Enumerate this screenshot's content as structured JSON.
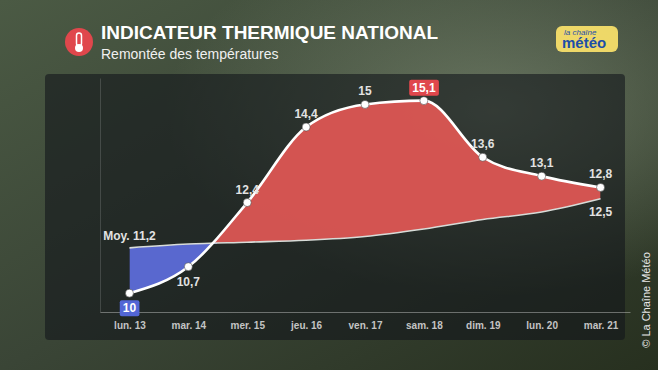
{
  "chart_data": {
    "type": "line",
    "title": "INDICATEUR THERMIQUE NATIONAL",
    "subtitle": "Remontée des températures",
    "logo": {
      "top": "la chaîne",
      "bottom": "météo"
    },
    "source": "© La Chaîne Météo",
    "categories": [
      "lun. 13",
      "mar. 14",
      "mer. 15",
      "jeu. 16",
      "ven. 17",
      "sam. 18",
      "dim. 19",
      "lun. 20",
      "mar. 21"
    ],
    "series": [
      {
        "color": "#ffffff",
        "values": [
          10,
          10.7,
          12.4,
          14.4,
          15,
          15.1,
          13.6,
          13.1,
          12.8
        ],
        "value_labels": [
          "10",
          "10,7",
          "12,4",
          "14,4",
          "15",
          "15,1",
          "13,6",
          "13,1",
          "12,8"
        ]
      },
      {
        "color": "#d8dcd8",
        "values": [
          11.2,
          11.3,
          11.35,
          11.4,
          11.5,
          11.7,
          11.95,
          12.15,
          12.5
        ],
        "value_labels": [
          "Moy. 11,2",
          null,
          null,
          null,
          null,
          null,
          null,
          null,
          "12,5"
        ]
      }
    ],
    "ylim": [
      9.5,
      15.7
    ],
    "yticks": [],
    "grid": false,
    "data_labels": true,
    "tick_labels": "x"
  }
}
